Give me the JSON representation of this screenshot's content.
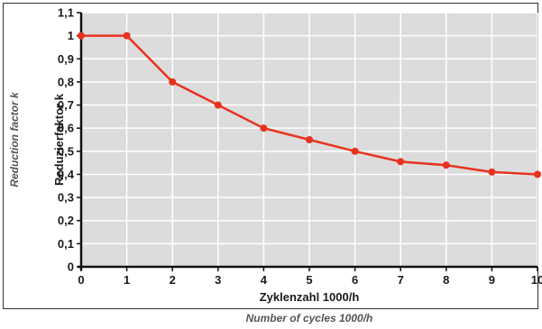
{
  "chart_data": {
    "type": "line",
    "x": [
      0,
      1,
      2,
      3,
      4,
      5,
      6,
      7,
      8,
      9,
      10
    ],
    "series": [
      {
        "values": [
          1.0,
          1.0,
          0.8,
          0.7,
          0.6,
          0.55,
          0.5,
          0.455,
          0.44,
          0.41,
          0.4
        ]
      }
    ],
    "xlim": [
      0,
      10
    ],
    "ylim": [
      0,
      1.1
    ],
    "x_ticks": [
      0,
      1,
      2,
      3,
      4,
      5,
      6,
      7,
      8,
      9,
      10
    ],
    "x_tick_labels": [
      "0",
      "1",
      "2",
      "3",
      "4",
      "5",
      "6",
      "7",
      "8",
      "9",
      "10"
    ],
    "y_ticks": [
      0,
      0.1,
      0.2,
      0.3,
      0.4,
      0.5,
      0.6,
      0.7,
      0.8,
      0.9,
      1.0,
      1.1
    ],
    "y_tick_labels": [
      "0",
      "0,1",
      "0,2",
      "0,3",
      "0,4",
      "0,5",
      "0,6",
      "0,7",
      "0,8",
      "0,9",
      "1",
      "1,1"
    ],
    "xlabel": "Zyklenzahl 1000/h",
    "xlabel_en": "Number of cycles 1000/h",
    "ylabel": "Reduzierfaktor k",
    "ylabel_en": "Reduction factor k",
    "grid": true,
    "colors": {
      "line": "#e8321e",
      "point": "#e8321e",
      "plot_background": "#dcdcdc",
      "grid": "#ffffff",
      "axis": "#111111",
      "frame": "#333333"
    }
  }
}
